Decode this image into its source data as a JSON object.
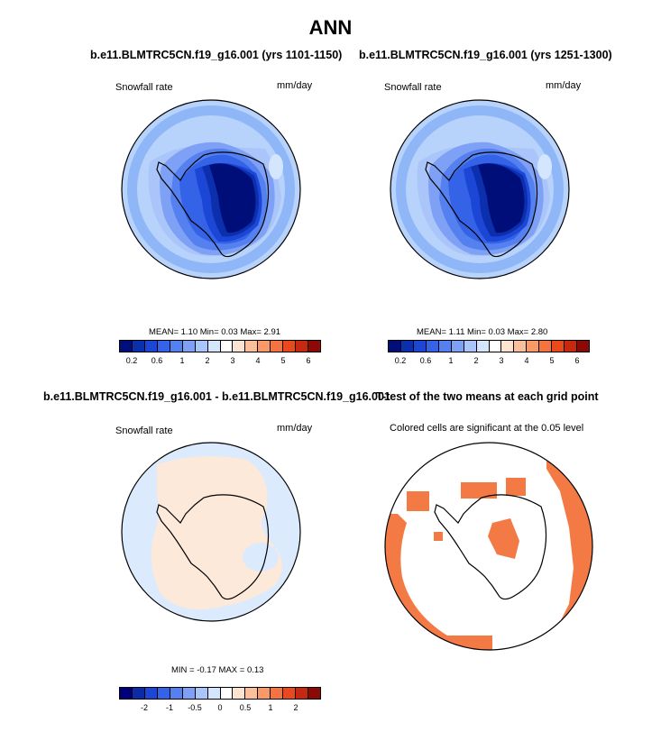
{
  "figure": {
    "title": "ANN"
  },
  "panels": [
    {
      "id": "p1",
      "title": "b.e11.BLMTRC5CN.f19_g16.001 (yrs 1101-1150)",
      "left_label": "Snowfall rate",
      "right_label": "mm/day",
      "stats": "MEAN=   1.10  Min=   0.03  Max=   2.91"
    },
    {
      "id": "p2",
      "title": "b.e11.BLMTRC5CN.f19_g16.001 (yrs 1251-1300)",
      "left_label": "Snowfall rate",
      "right_label": "mm/day",
      "stats": "MEAN=   1.11  Min=   0.03  Max=   2.80"
    },
    {
      "id": "p3",
      "title": "b.e11.BLMTRC5CN.f19_g16.001 - b.e11.BLMTRC5CN.f19_g16.001",
      "left_label": "Snowfall rate",
      "right_label": "mm/day",
      "stats": "MIN =  -0.17  MAX =   0.13"
    },
    {
      "id": "p4",
      "title": "T-test of the two means at each grid point",
      "subtitle": "Colored cells are significant at the 0.05 level"
    }
  ],
  "colorbars": {
    "abs": {
      "colors": [
        "#000e7a",
        "#0c2fae",
        "#1b46d6",
        "#3563e8",
        "#5580f0",
        "#7ea1f5",
        "#a9c5fa",
        "#d4e6fd",
        "#ffffff",
        "#fde3d0",
        "#fbbf9b",
        "#f99966",
        "#f57340",
        "#e84a1e",
        "#c82810",
        "#8b0a05"
      ],
      "ticks": [
        {
          "label": "0.2",
          "idx": 1
        },
        {
          "label": "0.6",
          "idx": 3
        },
        {
          "label": "1",
          "idx": 5
        },
        {
          "label": "2",
          "idx": 7
        },
        {
          "label": "3",
          "idx": 9
        },
        {
          "label": "4",
          "idx": 11
        },
        {
          "label": "5",
          "idx": 13
        },
        {
          "label": "6",
          "idx": 15
        }
      ]
    },
    "diff": {
      "colors": [
        "#00007a",
        "#0d2aa8",
        "#1b46d6",
        "#3563e8",
        "#5580f0",
        "#7ea1f5",
        "#a9c5fa",
        "#d4e6fd",
        "#ffffff",
        "#fde3d0",
        "#fbbf9b",
        "#f99966",
        "#f57340",
        "#e84a1e",
        "#c82810",
        "#8b0a05"
      ],
      "ticks": [
        {
          "label": "-2",
          "idx": 2
        },
        {
          "label": "-1",
          "idx": 4
        },
        {
          "label": "-0.5",
          "idx": 6
        },
        {
          "label": "0",
          "idx": 8
        },
        {
          "label": "0.5",
          "idx": 10
        },
        {
          "label": "1",
          "idx": 12
        },
        {
          "label": "2",
          "idx": 14
        }
      ]
    }
  },
  "colors": {
    "sig_cells": "#f47a45",
    "diff_bg": "#dbeafc",
    "diff_pos": "#fde9da"
  }
}
